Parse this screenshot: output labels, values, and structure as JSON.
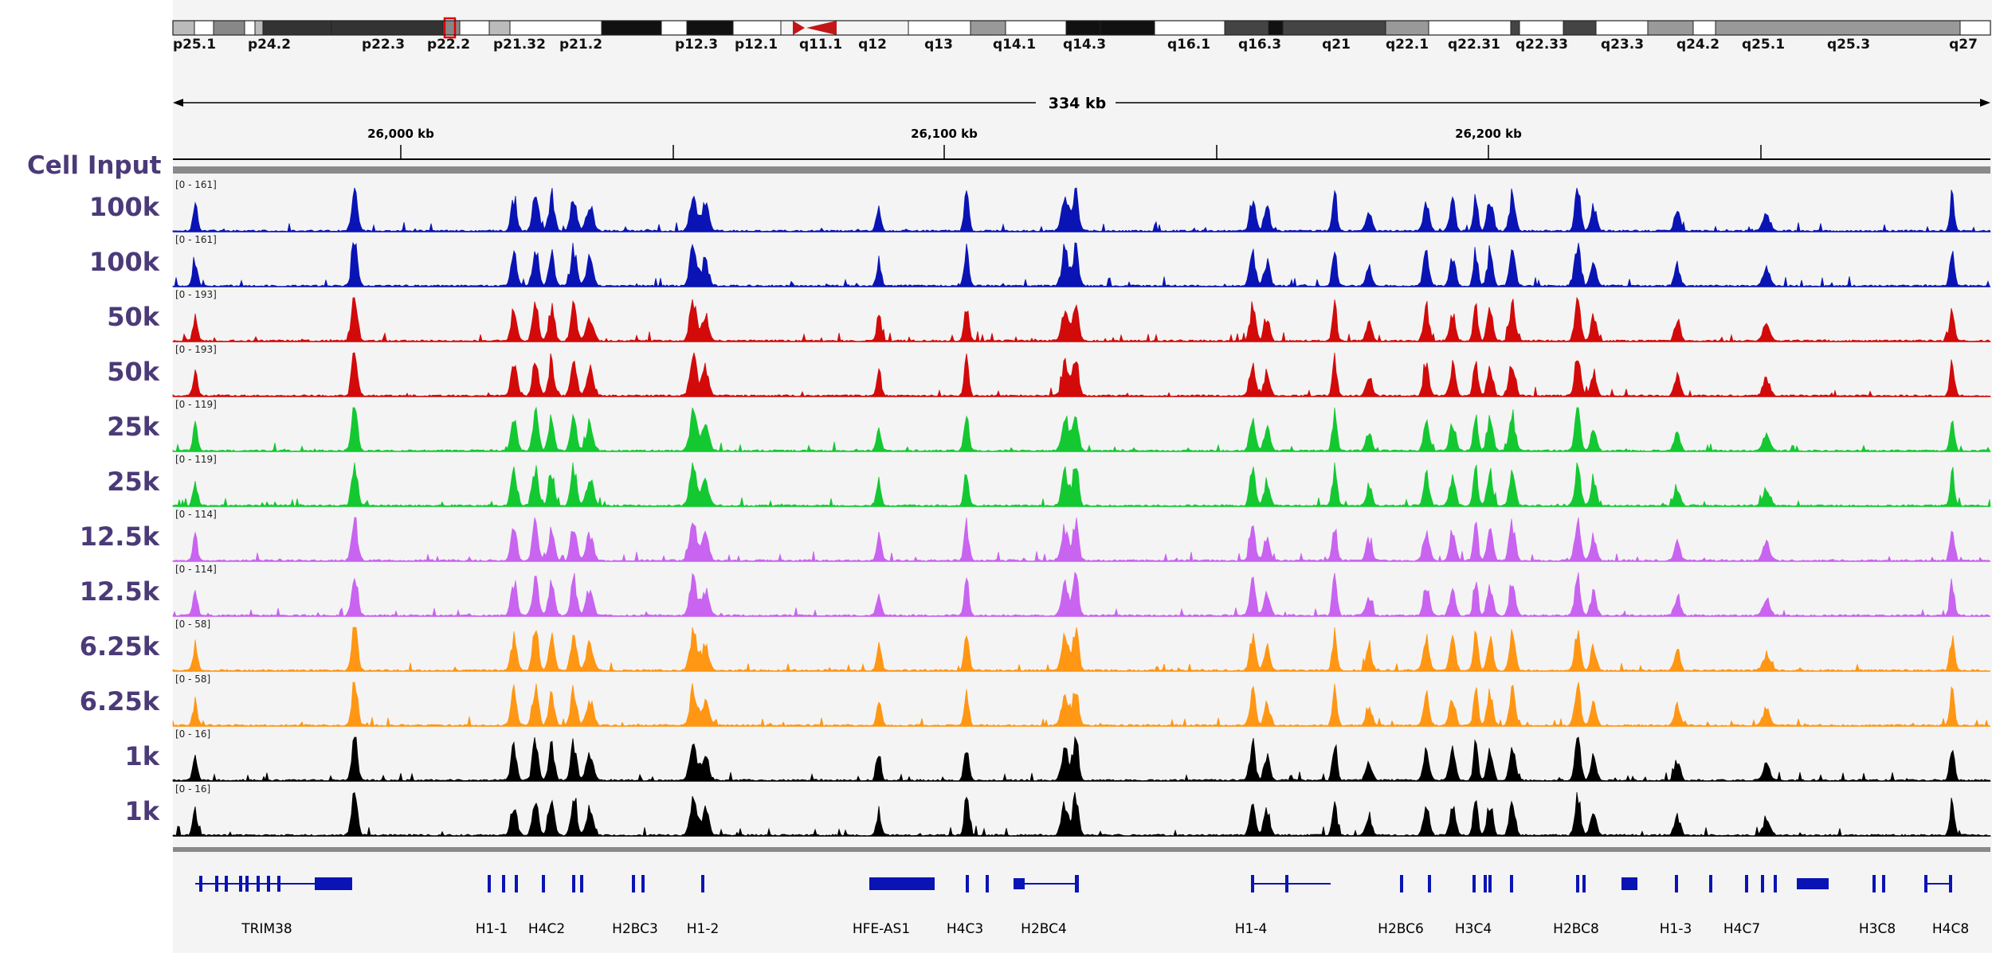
{
  "viewer": {
    "region_span": "334 kb",
    "ruler_ticks": [
      "26,000 kb",
      "26,100 kb",
      "26,200 kb"
    ]
  },
  "ideogram": {
    "band_labels": [
      "p25.1",
      "p24.2",
      "p22.3",
      "p22.2",
      "p21.32",
      "p21.2",
      "p12.3",
      "p12.1",
      "q11.1",
      "q12",
      "q13",
      "q14.1",
      "q14.3",
      "q16.1",
      "q16.3",
      "q21",
      "q22.1",
      "q22.31",
      "q22.33",
      "q23.3",
      "q24.2",
      "q25.1",
      "q25.3",
      "q27"
    ]
  },
  "column_header": "Cell Input",
  "tracks": [
    {
      "label": "100k",
      "range": "[0 - 161]",
      "color": "#0a14b4"
    },
    {
      "label": "100k",
      "range": "[0 - 161]",
      "color": "#0a14b4"
    },
    {
      "label": "50k",
      "range": "[0 - 193]",
      "color": "#d20a0a"
    },
    {
      "label": "50k",
      "range": "[0 - 193]",
      "color": "#d20a0a"
    },
    {
      "label": "25k",
      "range": "[0 - 119]",
      "color": "#14c832"
    },
    {
      "label": "25k",
      "range": "[0 - 119]",
      "color": "#14c832"
    },
    {
      "label": "12.5k",
      "range": "[0 - 114]",
      "color": "#c864f0"
    },
    {
      "label": "12.5k",
      "range": "[0 - 114]",
      "color": "#c864f0"
    },
    {
      "label": "6.25k",
      "range": "[0 - 58]",
      "color": "#ff9614"
    },
    {
      "label": "6.25k",
      "range": "[0 - 58]",
      "color": "#ff9614"
    },
    {
      "label": "1k",
      "range": "[0 - 16]",
      "color": "#000000"
    },
    {
      "label": "1k",
      "range": "[0 - 16]",
      "color": "#000000"
    }
  ],
  "genes": {
    "color": "#0a14b4",
    "labels": [
      "TRIM38",
      "H1-1",
      "H4C2",
      "H2BC3",
      "H1-2",
      "HFE-AS1",
      "H4C3",
      "H2BC4",
      "H1-4",
      "H2BC6",
      "H3C4",
      "H2BC8",
      "H1-3",
      "H4C7",
      "H3C8",
      "H4C8"
    ]
  }
}
